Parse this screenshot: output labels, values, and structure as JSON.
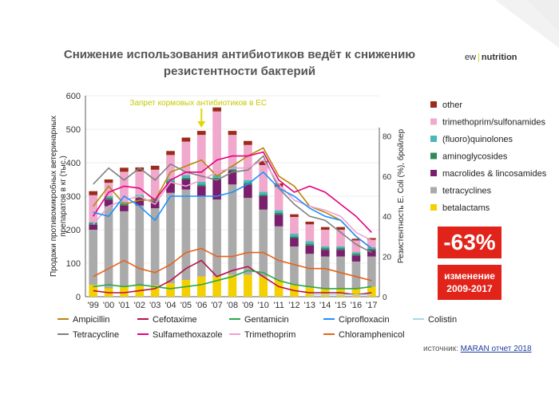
{
  "title_line1": "Снижение использования антибиотиков ведёт к снижению",
  "title_line2": "резистентности бактерий",
  "logo": {
    "part1": "ew",
    "part2": "nutrition"
  },
  "badge_percent": "-63%",
  "badge_label1": "изменение",
  "badge_label2": "2009-2017",
  "source_prefix": "источник:",
  "source_link": "MARAN отчет 2018",
  "colors": {
    "accent": "#c8d400",
    "badge": "#e2231a"
  },
  "chart_data": {
    "type": "bar",
    "annotation": "Запрет кормовых антибиотиков в ЕС",
    "annotation_year": "'06",
    "ylabel_left_1": "Продажи противомикробных ветеринарных",
    "ylabel_left_2": "препаратов в кг (тыс.)",
    "ylabel_right": "Резистентность E. Coli  (%), бройлер",
    "ylim_left": [
      0,
      600
    ],
    "ylim_right": [
      0,
      100
    ],
    "yticks_left": [
      "0",
      "100",
      "200",
      "300",
      "400",
      "500",
      "600"
    ],
    "yticks_right": [
      "0",
      "20",
      "40",
      "60",
      "80"
    ],
    "yticks_right_values": [
      0,
      20,
      40,
      60,
      80
    ],
    "categories": [
      "'99",
      "'00",
      "'01",
      "'02",
      "'03",
      "'04",
      "'05",
      "'06",
      "'07",
      "'08",
      "'09",
      "'10",
      "'11",
      "'12",
      "'13",
      "'14",
      "'15",
      "'16",
      "'17"
    ],
    "bar_series": [
      {
        "name": "betalactams",
        "color": "#f5d000",
        "values": [
          35,
          25,
          30,
          32,
          34,
          40,
          50,
          60,
          60,
          65,
          65,
          60,
          50,
          35,
          28,
          25,
          25,
          25,
          30
        ]
      },
      {
        "name": "tetracyclines",
        "color": "#aaaaaa",
        "values": [
          165,
          245,
          225,
          240,
          230,
          270,
          270,
          240,
          230,
          270,
          230,
          200,
          160,
          115,
          100,
          95,
          95,
          80,
          90
        ]
      },
      {
        "name": "macrolides & lincosamides",
        "color": "#7a1f6e",
        "values": [
          15,
          20,
          18,
          22,
          20,
          30,
          30,
          30,
          60,
          40,
          40,
          40,
          35,
          25,
          25,
          20,
          20,
          18,
          18
        ]
      },
      {
        "name": "aminoglycosides",
        "color": "#2e8b57",
        "values": [
          5,
          5,
          5,
          5,
          5,
          5,
          5,
          5,
          5,
          5,
          5,
          5,
          5,
          5,
          5,
          5,
          5,
          5,
          5
        ]
      },
      {
        "name": "(fluoro)quinolones",
        "color": "#4bb8b8",
        "values": [
          3,
          5,
          5,
          5,
          5,
          8,
          8,
          8,
          8,
          8,
          8,
          8,
          8,
          8,
          8,
          5,
          5,
          5,
          5
        ]
      },
      {
        "name": "trimethoprim/sulfonamides",
        "color": "#f0a8cc",
        "values": [
          80,
          40,
          90,
          70,
          85,
          70,
          100,
          140,
          190,
          95,
          105,
          80,
          70,
          50,
          50,
          50,
          50,
          35,
          22
        ]
      },
      {
        "name": "other",
        "color": "#9b2b1a",
        "values": [
          12,
          10,
          12,
          12,
          12,
          12,
          12,
          12,
          12,
          12,
          12,
          12,
          10,
          8,
          8,
          8,
          8,
          5,
          5
        ]
      }
    ],
    "line_series": [
      {
        "name": "Ampicillin",
        "color": "#b8860b",
        "values": [
          45,
          55,
          46,
          48,
          48,
          62,
          65,
          68,
          60,
          65,
          70,
          74,
          60,
          55,
          45,
          42,
          38,
          30,
          24
        ]
      },
      {
        "name": "Tetracycline",
        "color": "#808080",
        "values": [
          56,
          64,
          58,
          64,
          58,
          66,
          62,
          60,
          58,
          62,
          63,
          70,
          54,
          46,
          40,
          38,
          32,
          26,
          22
        ]
      },
      {
        "name": "Cefotaxime",
        "color": "#b5114a",
        "values": [
          3,
          2,
          2,
          3,
          4,
          8,
          14,
          18,
          10,
          13,
          15,
          10,
          5,
          3,
          2,
          2,
          2,
          1,
          2
        ]
      },
      {
        "name": "Sulfamethoxazole",
        "color": "#e6007e",
        "values": [
          40,
          52,
          55,
          54,
          48,
          58,
          62,
          62,
          68,
          70,
          70,
          72,
          58,
          52,
          55,
          52,
          46,
          40,
          32
        ]
      },
      {
        "name": "Gentamicin",
        "color": "#2aa84a",
        "values": [
          5,
          6,
          5,
          6,
          5,
          4,
          5,
          6,
          8,
          10,
          13,
          12,
          8,
          6,
          5,
          4,
          4,
          4,
          5
        ]
      },
      {
        "name": "Trimethoprim",
        "color": "#f0a0d0",
        "values": [
          36,
          45,
          48,
          50,
          46,
          57,
          55,
          58,
          62,
          64,
          64,
          68,
          56,
          48,
          45,
          43,
          40,
          32,
          28
        ]
      },
      {
        "name": "Ciprofloxacin",
        "color": "#1e90ff",
        "values": [
          42,
          40,
          50,
          45,
          38,
          50,
          50,
          50,
          50,
          52,
          56,
          62,
          54,
          50,
          44,
          40,
          38,
          30,
          24
        ]
      },
      {
        "name": "Chloramphenicol",
        "color": "#e8621a",
        "values": [
          10,
          14,
          18,
          14,
          12,
          16,
          22,
          24,
          20,
          20,
          22,
          22,
          18,
          16,
          14,
          14,
          12,
          10,
          8
        ]
      },
      {
        "name": "Colistin",
        "color": "#a8d8ea",
        "values": [
          null,
          null,
          null,
          null,
          null,
          null,
          null,
          null,
          null,
          null,
          null,
          null,
          null,
          null,
          1,
          1,
          1,
          1,
          1
        ]
      }
    ],
    "bar_legend": [
      "other",
      "trimethoprim/sulfonamides",
      "(fluoro)quinolones",
      "aminoglycosides",
      "macrolides & lincosamides",
      "tetracyclines",
      "betalactams"
    ],
    "bar_legend_colors": [
      "#9b2b1a",
      "#f0a8cc",
      "#4bb8b8",
      "#2e8b57",
      "#7a1f6e",
      "#aaaaaa",
      "#f5d000"
    ],
    "line_legend": [
      [
        "Ampicillin",
        "Cefotaxime",
        "Gentamicin",
        "Ciprofloxacin",
        "Colistin"
      ],
      [
        "Tetracycline",
        "Sulfamethoxazole",
        "Trimethoprim",
        "Chloramphenicol"
      ]
    ],
    "line_legend_colors": [
      [
        "#b8860b",
        "#b5114a",
        "#2aa84a",
        "#1e90ff",
        "#a8d8ea"
      ],
      [
        "#808080",
        "#e6007e",
        "#f0a0d0",
        "#e8621a"
      ]
    ]
  }
}
